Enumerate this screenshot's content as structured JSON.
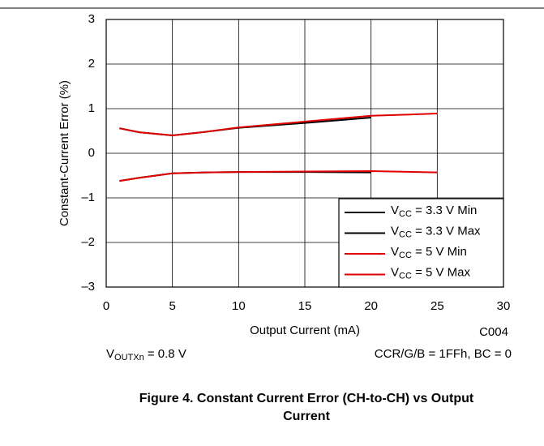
{
  "chart_data": {
    "type": "line",
    "title": "Figure 4. Constant Current Error (CH-to-CH) vs Output Current",
    "xlabel": "Output Current (mA)",
    "ylabel": "Constant-Current Error (%)",
    "code": "C004",
    "annotations": [
      "VOUTXn = 0.8 V",
      "CCR/G/B = 1FFh, BC = 0"
    ],
    "x": [
      1,
      2.5,
      5,
      7.5,
      10,
      15,
      20,
      25
    ],
    "series": [
      {
        "name": "VCC = 3.3 V Min",
        "color": "#000000",
        "values": [
          -0.62,
          -0.55,
          -0.45,
          -0.43,
          -0.42,
          -0.42,
          -0.43,
          null
        ]
      },
      {
        "name": "VCC = 3.3 V Max",
        "color": "#000000",
        "values": [
          0.56,
          0.47,
          0.4,
          0.48,
          0.57,
          0.68,
          0.8,
          null
        ]
      },
      {
        "name": "VCC = 5 V Min",
        "color": "#e00000",
        "values": [
          -0.62,
          -0.55,
          -0.45,
          -0.43,
          -0.42,
          -0.41,
          -0.4,
          -0.43
        ]
      },
      {
        "name": "VCC = 5 V Max",
        "color": "#e00000",
        "values": [
          0.56,
          0.47,
          0.4,
          0.48,
          0.58,
          0.71,
          0.84,
          0.89
        ]
      }
    ],
    "xlim": [
      0,
      30
    ],
    "xticks": [
      0,
      5,
      10,
      15,
      20,
      25,
      30
    ],
    "ylim": [
      -3,
      3
    ],
    "yticks": [
      {
        "value": -3,
        "label": "–3"
      },
      {
        "value": -2,
        "label": "–2"
      },
      {
        "value": -1,
        "label": "–1"
      },
      0,
      1,
      2,
      3
    ],
    "grid": true,
    "legend": "lower right"
  }
}
